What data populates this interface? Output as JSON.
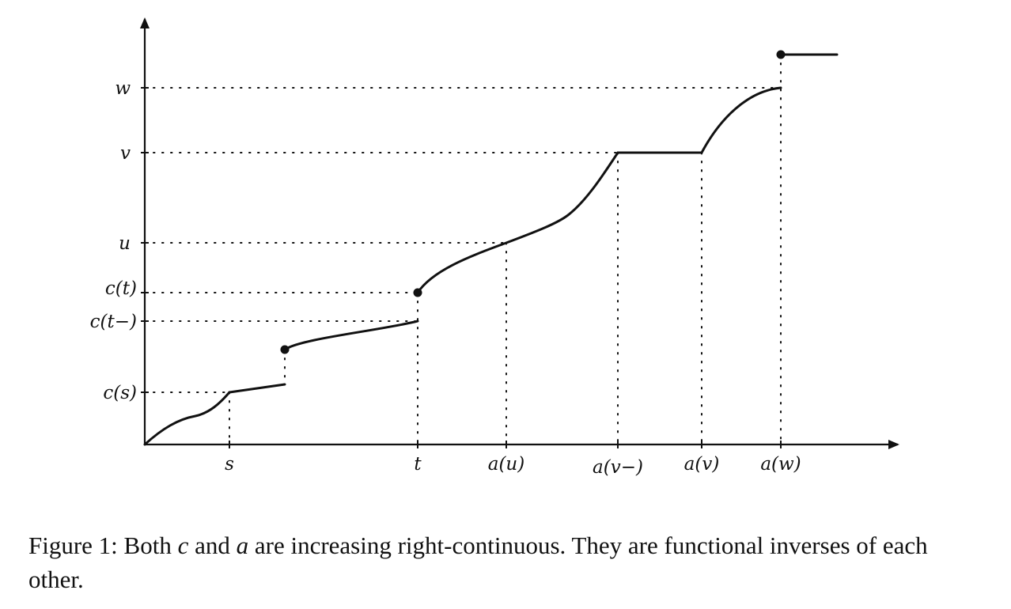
{
  "figure": {
    "y_labels": {
      "w": "w",
      "v": "v",
      "u": "u",
      "ct": "c(t)",
      "ctm": "c(t−)",
      "cs": "c(s)"
    },
    "x_labels": {
      "s": "s",
      "t": "t",
      "au": "a(u)",
      "avm": "a(v−)",
      "av": "a(v)",
      "aw": "a(w)"
    }
  },
  "caption": {
    "prefix": "Figure 1: Both ",
    "var_c": "c",
    "and": " and ",
    "var_a": "a",
    "rest": " are increasing right-continuous. They are functional inverses of each other."
  },
  "colors": {
    "ink": "#111111"
  }
}
